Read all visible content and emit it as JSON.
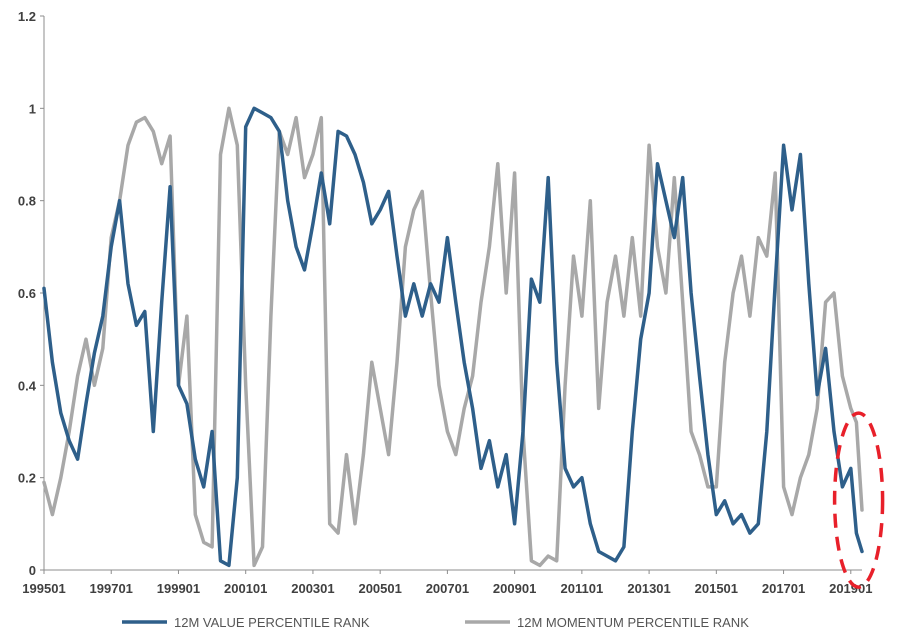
{
  "chart_data": {
    "type": "line",
    "title": "",
    "xlabel": "",
    "ylabel": "",
    "ylim": [
      0,
      1.2
    ],
    "y_ticks": [
      "0",
      "0.2",
      "0.4",
      "0.6",
      "0.8",
      "1",
      "1.2"
    ],
    "x_ticks": [
      "199501",
      "199701",
      "199901",
      "200101",
      "200301",
      "200501",
      "200701",
      "200901",
      "201101",
      "201301",
      "201501",
      "201701",
      "201901"
    ],
    "x_range": [
      "1995-01",
      "2019-05"
    ],
    "grid": false,
    "legend_position": "bottom",
    "series": [
      {
        "name": "12M VALUE PERCENTILE RANK",
        "color": "#2E5F8A",
        "points": [
          [
            "1995-01",
            0.61
          ],
          [
            "1995-04",
            0.45
          ],
          [
            "1995-07",
            0.34
          ],
          [
            "1995-10",
            0.28
          ],
          [
            "1996-01",
            0.24
          ],
          [
            "1996-04",
            0.36
          ],
          [
            "1996-07",
            0.47
          ],
          [
            "1996-10",
            0.55
          ],
          [
            "1997-01",
            0.7
          ],
          [
            "1997-04",
            0.8
          ],
          [
            "1997-07",
            0.62
          ],
          [
            "1997-10",
            0.53
          ],
          [
            "1998-01",
            0.56
          ],
          [
            "1998-04",
            0.3
          ],
          [
            "1998-07",
            0.58
          ],
          [
            "1998-10",
            0.83
          ],
          [
            "1999-01",
            0.4
          ],
          [
            "1999-04",
            0.36
          ],
          [
            "1999-07",
            0.24
          ],
          [
            "1999-10",
            0.18
          ],
          [
            "2000-01",
            0.3
          ],
          [
            "2000-04",
            0.02
          ],
          [
            "2000-07",
            0.01
          ],
          [
            "2000-10",
            0.2
          ],
          [
            "2001-01",
            0.96
          ],
          [
            "2001-04",
            1.0
          ],
          [
            "2001-07",
            0.99
          ],
          [
            "2001-10",
            0.98
          ],
          [
            "2002-01",
            0.95
          ],
          [
            "2002-04",
            0.8
          ],
          [
            "2002-07",
            0.7
          ],
          [
            "2002-10",
            0.65
          ],
          [
            "2003-01",
            0.75
          ],
          [
            "2003-04",
            0.86
          ],
          [
            "2003-07",
            0.75
          ],
          [
            "2003-10",
            0.95
          ],
          [
            "2004-01",
            0.94
          ],
          [
            "2004-04",
            0.9
          ],
          [
            "2004-07",
            0.84
          ],
          [
            "2004-10",
            0.75
          ],
          [
            "2005-01",
            0.78
          ],
          [
            "2005-04",
            0.82
          ],
          [
            "2005-07",
            0.68
          ],
          [
            "2005-10",
            0.55
          ],
          [
            "2006-01",
            0.62
          ],
          [
            "2006-04",
            0.55
          ],
          [
            "2006-07",
            0.62
          ],
          [
            "2006-10",
            0.58
          ],
          [
            "2007-01",
            0.72
          ],
          [
            "2007-04",
            0.58
          ],
          [
            "2007-07",
            0.45
          ],
          [
            "2007-10",
            0.35
          ],
          [
            "2008-01",
            0.22
          ],
          [
            "2008-04",
            0.28
          ],
          [
            "2008-07",
            0.18
          ],
          [
            "2008-10",
            0.25
          ],
          [
            "2009-01",
            0.1
          ],
          [
            "2009-04",
            0.3
          ],
          [
            "2009-07",
            0.63
          ],
          [
            "2009-10",
            0.58
          ],
          [
            "2010-01",
            0.85
          ],
          [
            "2010-04",
            0.45
          ],
          [
            "2010-07",
            0.22
          ],
          [
            "2010-10",
            0.18
          ],
          [
            "2011-01",
            0.2
          ],
          [
            "2011-04",
            0.1
          ],
          [
            "2011-07",
            0.04
          ],
          [
            "2011-10",
            0.03
          ],
          [
            "2012-01",
            0.02
          ],
          [
            "2012-04",
            0.05
          ],
          [
            "2012-07",
            0.3
          ],
          [
            "2012-10",
            0.5
          ],
          [
            "2013-01",
            0.6
          ],
          [
            "2013-04",
            0.88
          ],
          [
            "2013-07",
            0.8
          ],
          [
            "2013-10",
            0.72
          ],
          [
            "2014-01",
            0.85
          ],
          [
            "2014-04",
            0.6
          ],
          [
            "2014-07",
            0.42
          ],
          [
            "2014-10",
            0.25
          ],
          [
            "2015-01",
            0.12
          ],
          [
            "2015-04",
            0.15
          ],
          [
            "2015-07",
            0.1
          ],
          [
            "2015-10",
            0.12
          ],
          [
            "2016-01",
            0.08
          ],
          [
            "2016-04",
            0.1
          ],
          [
            "2016-07",
            0.3
          ],
          [
            "2016-10",
            0.62
          ],
          [
            "2017-01",
            0.92
          ],
          [
            "2017-04",
            0.78
          ],
          [
            "2017-07",
            0.9
          ],
          [
            "2017-10",
            0.62
          ],
          [
            "2018-01",
            0.38
          ],
          [
            "2018-04",
            0.48
          ],
          [
            "2018-07",
            0.3
          ],
          [
            "2018-10",
            0.18
          ],
          [
            "2019-01",
            0.22
          ],
          [
            "2019-03",
            0.08
          ],
          [
            "2019-05",
            0.04
          ]
        ]
      },
      {
        "name": "12M MOMENTUM PERCENTILE RANK",
        "color": "#A8A8A8",
        "points": [
          [
            "1995-01",
            0.19
          ],
          [
            "1995-04",
            0.12
          ],
          [
            "1995-07",
            0.2
          ],
          [
            "1995-10",
            0.3
          ],
          [
            "1996-01",
            0.42
          ],
          [
            "1996-04",
            0.5
          ],
          [
            "1996-07",
            0.4
          ],
          [
            "1996-10",
            0.48
          ],
          [
            "1997-01",
            0.72
          ],
          [
            "1997-04",
            0.8
          ],
          [
            "1997-07",
            0.92
          ],
          [
            "1997-10",
            0.97
          ],
          [
            "1998-01",
            0.98
          ],
          [
            "1998-04",
            0.95
          ],
          [
            "1998-07",
            0.88
          ],
          [
            "1998-10",
            0.94
          ],
          [
            "1999-01",
            0.4
          ],
          [
            "1999-04",
            0.55
          ],
          [
            "1999-07",
            0.12
          ],
          [
            "1999-10",
            0.06
          ],
          [
            "2000-01",
            0.05
          ],
          [
            "2000-04",
            0.9
          ],
          [
            "2000-07",
            1.0
          ],
          [
            "2000-10",
            0.92
          ],
          [
            "2001-01",
            0.4
          ],
          [
            "2001-04",
            0.01
          ],
          [
            "2001-07",
            0.05
          ],
          [
            "2001-10",
            0.55
          ],
          [
            "2002-01",
            0.95
          ],
          [
            "2002-04",
            0.9
          ],
          [
            "2002-07",
            0.98
          ],
          [
            "2002-10",
            0.85
          ],
          [
            "2003-01",
            0.9
          ],
          [
            "2003-04",
            0.98
          ],
          [
            "2003-07",
            0.1
          ],
          [
            "2003-10",
            0.08
          ],
          [
            "2004-01",
            0.25
          ],
          [
            "2004-04",
            0.1
          ],
          [
            "2004-07",
            0.25
          ],
          [
            "2004-10",
            0.45
          ],
          [
            "2005-01",
            0.35
          ],
          [
            "2005-04",
            0.25
          ],
          [
            "2005-07",
            0.45
          ],
          [
            "2005-10",
            0.7
          ],
          [
            "2006-01",
            0.78
          ],
          [
            "2006-04",
            0.82
          ],
          [
            "2006-07",
            0.6
          ],
          [
            "2006-10",
            0.4
          ],
          [
            "2007-01",
            0.3
          ],
          [
            "2007-04",
            0.25
          ],
          [
            "2007-07",
            0.35
          ],
          [
            "2007-10",
            0.42
          ],
          [
            "2008-01",
            0.58
          ],
          [
            "2008-04",
            0.7
          ],
          [
            "2008-07",
            0.88
          ],
          [
            "2008-10",
            0.6
          ],
          [
            "2009-01",
            0.86
          ],
          [
            "2009-04",
            0.3
          ],
          [
            "2009-07",
            0.02
          ],
          [
            "2009-10",
            0.01
          ],
          [
            "2010-01",
            0.03
          ],
          [
            "2010-04",
            0.02
          ],
          [
            "2010-07",
            0.4
          ],
          [
            "2010-10",
            0.68
          ],
          [
            "2011-01",
            0.55
          ],
          [
            "2011-04",
            0.8
          ],
          [
            "2011-07",
            0.35
          ],
          [
            "2011-10",
            0.58
          ],
          [
            "2012-01",
            0.68
          ],
          [
            "2012-04",
            0.55
          ],
          [
            "2012-07",
            0.72
          ],
          [
            "2012-10",
            0.55
          ],
          [
            "2013-01",
            0.92
          ],
          [
            "2013-04",
            0.7
          ],
          [
            "2013-07",
            0.6
          ],
          [
            "2013-10",
            0.85
          ],
          [
            "2014-01",
            0.58
          ],
          [
            "2014-04",
            0.3
          ],
          [
            "2014-07",
            0.25
          ],
          [
            "2014-10",
            0.18
          ],
          [
            "2015-01",
            0.18
          ],
          [
            "2015-04",
            0.45
          ],
          [
            "2015-07",
            0.6
          ],
          [
            "2015-10",
            0.68
          ],
          [
            "2016-01",
            0.55
          ],
          [
            "2016-04",
            0.72
          ],
          [
            "2016-07",
            0.68
          ],
          [
            "2016-10",
            0.86
          ],
          [
            "2017-01",
            0.18
          ],
          [
            "2017-04",
            0.12
          ],
          [
            "2017-07",
            0.2
          ],
          [
            "2017-10",
            0.25
          ],
          [
            "2018-01",
            0.35
          ],
          [
            "2018-04",
            0.58
          ],
          [
            "2018-07",
            0.6
          ],
          [
            "2018-10",
            0.42
          ],
          [
            "2019-01",
            0.35
          ],
          [
            "2019-03",
            0.32
          ],
          [
            "2019-05",
            0.13
          ]
        ]
      }
    ],
    "annotation": {
      "shape": "dashed-ellipse",
      "color": "#E8202A",
      "x_center": "2019-02",
      "y_center": 0.16
    }
  }
}
